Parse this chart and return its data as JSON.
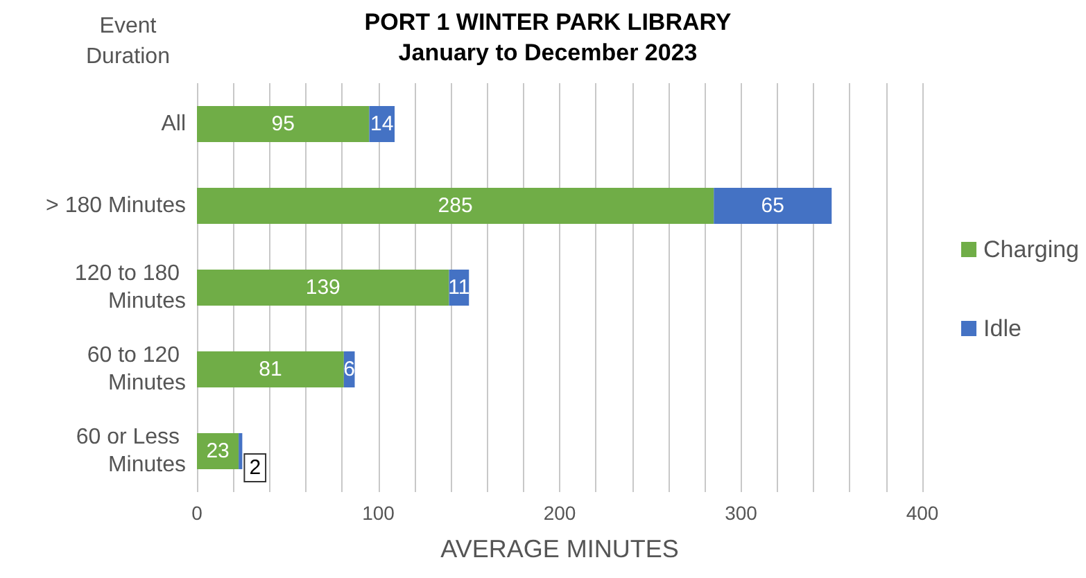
{
  "chart_data": {
    "type": "bar",
    "orientation": "horizontal",
    "stacked": true,
    "title": "PORT 1 WINTER PARK LIBRARY\nJanuary to December 2023",
    "ylabel": "Event Duration",
    "xlabel": "AVERAGE MINUTES",
    "categories": [
      "All",
      "> 180 Minutes",
      "120 to 180 Minutes",
      "60 to 120 Minutes",
      "60 or Less Minutes"
    ],
    "series": [
      {
        "name": "Charging",
        "color": "#70ad47",
        "values": [
          95,
          285,
          139,
          81,
          23
        ]
      },
      {
        "name": "Idle",
        "color": "#4472c4",
        "values": [
          14,
          65,
          11,
          6,
          2
        ]
      }
    ],
    "xlim": [
      0,
      400
    ],
    "xticks": [
      0,
      {
        "value": 20,
        "label": null
      },
      {
        "value": 40,
        "label": null
      },
      {
        "value": 60,
        "label": null
      },
      {
        "value": 80,
        "label": null
      },
      100,
      {
        "value": 120,
        "label": null
      },
      {
        "value": 140,
        "label": null
      },
      {
        "value": 160,
        "label": null
      },
      {
        "value": 180,
        "label": null
      },
      200,
      {
        "value": 220,
        "label": null
      },
      {
        "value": 240,
        "label": null
      },
      {
        "value": 260,
        "label": null
      },
      {
        "value": 280,
        "label": null
      },
      300,
      {
        "value": 320,
        "label": null
      },
      {
        "value": 340,
        "label": null
      },
      {
        "value": 360,
        "label": null
      },
      {
        "value": 380,
        "label": null
      },
      400
    ],
    "grid": "x",
    "legend": "right",
    "data_labels": true
  }
}
